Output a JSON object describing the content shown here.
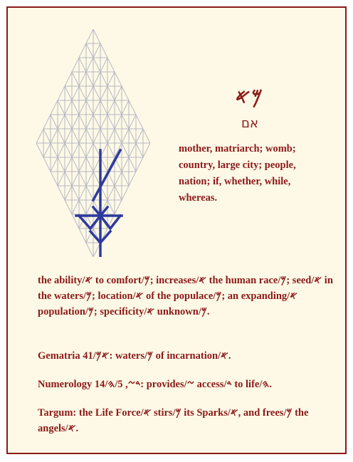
{
  "entry": {
    "paleo_title": "𐤌𐤀",
    "hebrew": "אם",
    "definition": "mother, matriarch; womb; country, large city; people, nation; if, whether, while, whereas."
  },
  "paragraphs": [
    "the ability/𐤀 to comfort/𐤌; increases/𐤀 the human race/𐤌; seed/𐤀 in the waters/𐤌; location/𐤀 of the populace/𐤌; an expanding/𐤀 population/𐤌; specificity/𐤀 unknown/𐤌.",
    "Gematria 41/𐤀𐤌: waters/𐤌 of incarnation/𐤀.",
    "Numerology 14/𐤃𐤆, 5/𐤄: provides/𐤆 access/𐤃 to life/𐤄.",
    "Targum: the Life Force/𐤀 stirs/𐤌 its Sparks/𐤀, and frees/𐤌 the angels/𐤀."
  ],
  "colors": {
    "text": "#8b1a1a",
    "background": "#fdf9e6",
    "border": "#8b1a1a",
    "glyph": "#2e3a9e",
    "grid": "#b8b8c4"
  }
}
